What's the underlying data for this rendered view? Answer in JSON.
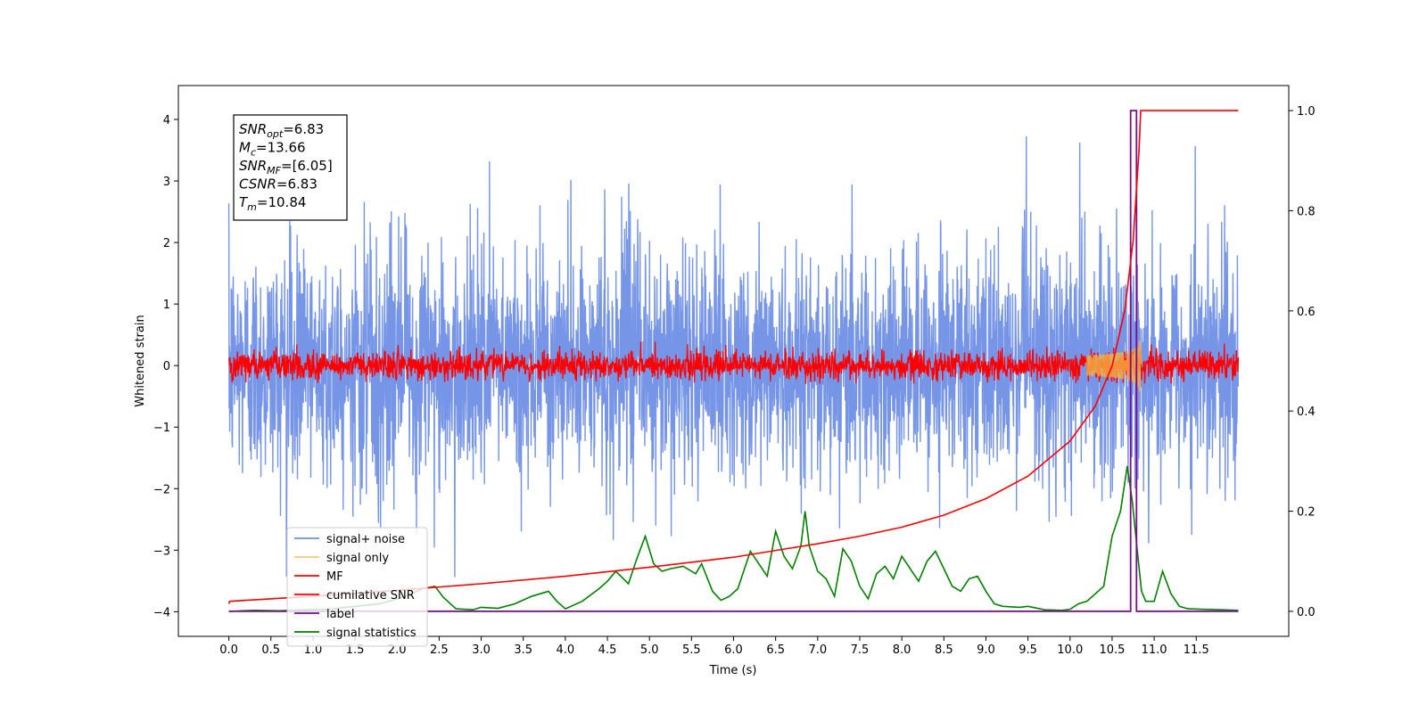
{
  "chart_data": {
    "type": "line",
    "xlabel": "Time (s)",
    "ylabel": "Whitened strain",
    "xlim": [
      -0.6,
      12.6
    ],
    "ylim_left": [
      -4.4,
      4.55
    ],
    "ylim_right": [
      -0.05,
      1.05
    ],
    "x_ticks": [
      "0.0",
      "0.5",
      "1.0",
      "1.5",
      "2.0",
      "2.5",
      "3.0",
      "3.5",
      "4.0",
      "4.5",
      "5.0",
      "5.5",
      "6.0",
      "6.5",
      "7.0",
      "7.5",
      "8.0",
      "8.5",
      "9.0",
      "9.5",
      "10.0",
      "10.5",
      "11.0",
      "11.5"
    ],
    "y_ticks_left": [
      "−4",
      "−3",
      "−2",
      "−1",
      "0",
      "1",
      "2",
      "3",
      "4"
    ],
    "y_ticks_right": [
      "0.0",
      "0.2",
      "0.4",
      "0.6",
      "0.8",
      "1.0"
    ],
    "colors": {
      "signal_noise": "#6f8fe6",
      "signal_only": "#f5b041",
      "mf": "#ff0000",
      "cumulative_snr": "#ff0000",
      "label": "#7d0a8c",
      "signal_statistics": "#008000"
    },
    "legend_position": "bottom-left",
    "annotation": {
      "lines": [
        {
          "main": "SNR",
          "sub": "opt",
          "value": "=6.83"
        },
        {
          "main": "M",
          "sub": "c",
          "value": "=13.66"
        },
        {
          "main": "SNR",
          "sub": "MF",
          "value": "=[6.05]"
        },
        {
          "main": "CSNR",
          "sub": "",
          "value": "=6.83"
        },
        {
          "main": "T",
          "sub": "m",
          "value": "=10.84"
        }
      ]
    },
    "series": [
      {
        "name": "signal+ noise",
        "axis": "left",
        "kind": "noise",
        "t_end": 12.0,
        "amplitude_sd": 0.95,
        "range": [
          -3.7,
          4.2
        ]
      },
      {
        "name": "signal only",
        "axis": "left",
        "kind": "chirp",
        "merger_time": 10.84,
        "peak_amplitude": 0.6
      },
      {
        "name": "MF",
        "axis": "left",
        "kind": "noise",
        "t_end": 12.0,
        "amplitude_sd": 0.12,
        "range": [
          -0.3,
          0.7
        ]
      },
      {
        "name": "cumilative SNR",
        "axis": "right",
        "x": [
          0.0,
          0.01,
          1.0,
          2.0,
          3.0,
          4.0,
          5.0,
          6.0,
          7.0,
          7.5,
          8.0,
          8.5,
          9.0,
          9.5,
          10.0,
          10.3,
          10.5,
          10.65,
          10.75,
          10.82,
          10.84,
          12.0
        ],
        "y": [
          0.015,
          0.02,
          0.03,
          0.042,
          0.055,
          0.07,
          0.088,
          0.108,
          0.135,
          0.15,
          0.168,
          0.192,
          0.225,
          0.27,
          0.34,
          0.41,
          0.49,
          0.6,
          0.74,
          0.92,
          1.0,
          1.0
        ]
      },
      {
        "name": "label",
        "axis": "right",
        "x": [
          0.0,
          10.72,
          10.72,
          10.79,
          10.79,
          12.0
        ],
        "y": [
          0.0,
          0.0,
          1.0,
          1.0,
          0.0,
          0.0
        ]
      },
      {
        "name": "signal statistics",
        "axis": "right",
        "x": [
          0.0,
          0.3,
          0.6,
          0.9,
          1.2,
          1.5,
          1.8,
          2.1,
          2.3,
          2.45,
          2.55,
          2.7,
          2.9,
          3.0,
          3.2,
          3.4,
          3.6,
          3.8,
          3.9,
          4.0,
          4.2,
          4.4,
          4.5,
          4.6,
          4.75,
          4.85,
          4.95,
          5.05,
          5.15,
          5.25,
          5.4,
          5.55,
          5.62,
          5.75,
          5.85,
          5.95,
          6.05,
          6.2,
          6.3,
          6.4,
          6.5,
          6.6,
          6.7,
          6.8,
          6.85,
          6.9,
          7.0,
          7.1,
          7.2,
          7.3,
          7.4,
          7.5,
          7.6,
          7.7,
          7.8,
          7.9,
          8.0,
          8.1,
          8.2,
          8.3,
          8.4,
          8.5,
          8.6,
          8.7,
          8.8,
          8.9,
          9.0,
          9.1,
          9.2,
          9.4,
          9.5,
          9.7,
          9.9,
          10.0,
          10.1,
          10.2,
          10.4,
          10.5,
          10.6,
          10.68,
          10.74,
          10.8,
          10.85,
          10.9,
          11.0,
          11.1,
          11.2,
          11.3,
          11.4,
          11.6,
          11.8,
          12.0
        ],
        "y": [
          0.0,
          0.002,
          0.001,
          0.003,
          0.004,
          0.01,
          0.015,
          0.03,
          0.045,
          0.05,
          0.028,
          0.005,
          0.003,
          0.008,
          0.006,
          0.015,
          0.03,
          0.04,
          0.02,
          0.005,
          0.02,
          0.045,
          0.06,
          0.08,
          0.055,
          0.105,
          0.15,
          0.095,
          0.08,
          0.085,
          0.09,
          0.075,
          0.095,
          0.04,
          0.022,
          0.03,
          0.045,
          0.12,
          0.095,
          0.07,
          0.16,
          0.11,
          0.085,
          0.13,
          0.2,
          0.13,
          0.08,
          0.065,
          0.03,
          0.125,
          0.1,
          0.05,
          0.025,
          0.075,
          0.09,
          0.065,
          0.11,
          0.085,
          0.06,
          0.1,
          0.12,
          0.085,
          0.05,
          0.04,
          0.065,
          0.07,
          0.04,
          0.015,
          0.01,
          0.008,
          0.01,
          0.003,
          0.002,
          0.004,
          0.015,
          0.02,
          0.05,
          0.15,
          0.2,
          0.29,
          0.22,
          0.12,
          0.04,
          0.02,
          0.02,
          0.08,
          0.035,
          0.01,
          0.005,
          0.004,
          0.003,
          0.002
        ]
      }
    ]
  }
}
